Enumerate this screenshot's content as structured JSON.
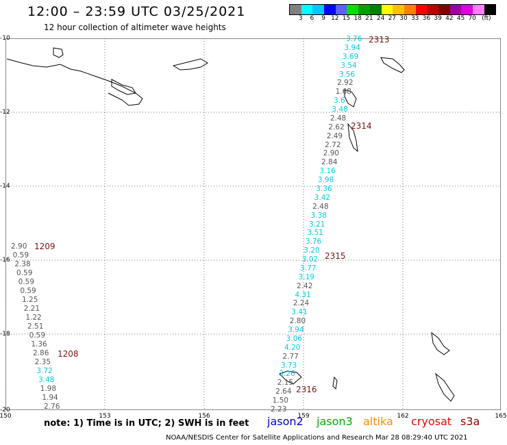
{
  "header": {
    "title": "12:00 – 23:59 UTC 03/25/2021",
    "subtitle": "12 hour collection of altimeter wave heights"
  },
  "scale": {
    "colors": [
      "#808080",
      "#00ffff",
      "#00c8ff",
      "#0000ff",
      "#6060ff",
      "#00e000",
      "#00a000",
      "#008000",
      "#ffff00",
      "#ffc000",
      "#ff8000",
      "#ff0000",
      "#c00000",
      "#800000",
      "#a000a0",
      "#e000e0",
      "#ff80ff",
      "#000000"
    ],
    "labels": [
      "3",
      "6",
      "9",
      "12",
      "15",
      "18",
      "21",
      "24",
      "27",
      "30",
      "33",
      "36",
      "39",
      "42",
      "45",
      "70",
      "(ft)"
    ]
  },
  "axes": {
    "lat_labels": [
      "-10",
      "-12",
      "-14",
      "-16",
      "-18",
      "-20"
    ],
    "lon_labels": [
      "150",
      "153",
      "156",
      "159",
      "162",
      "165"
    ]
  },
  "colors": {
    "jason2": "#0000cc",
    "jason3": "#00aa00",
    "altika": "#ff8800",
    "cryosat": "#ee0000",
    "s3a": "#880000",
    "cyan": "#00ccdd",
    "gray": "#555555",
    "pass": "#7a1010"
  },
  "passes": [
    {
      "label": "2313",
      "color": "pass"
    },
    {
      "label": "2314",
      "color": "pass"
    },
    {
      "label": "2315",
      "color": "pass"
    },
    {
      "label": "2316",
      "color": "pass"
    },
    {
      "label": "1209",
      "color": "pass"
    },
    {
      "label": "1208",
      "color": "pass"
    }
  ],
  "track_east": [
    {
      "v": "3.76",
      "c": "cyan"
    },
    {
      "v": "3.94",
      "c": "cyan"
    },
    {
      "v": "3.69",
      "c": "cyan"
    },
    {
      "v": "3.54",
      "c": "cyan"
    },
    {
      "v": "3.56",
      "c": "cyan"
    },
    {
      "v": "2.92",
      "c": "gray"
    },
    {
      "v": "1.68",
      "c": "gray"
    },
    {
      "v": "3.6",
      "c": "cyan"
    },
    {
      "v": "3.48",
      "c": "cyan"
    },
    {
      "v": "2.48",
      "c": "gray"
    },
    {
      "v": "2.62",
      "c": "gray"
    },
    {
      "v": "2.49",
      "c": "gray"
    },
    {
      "v": "2.72",
      "c": "gray"
    },
    {
      "v": "2.90",
      "c": "gray"
    },
    {
      "v": "2.84",
      "c": "gray"
    },
    {
      "v": "3.16",
      "c": "cyan"
    },
    {
      "v": "3.98",
      "c": "cyan"
    },
    {
      "v": "3.36",
      "c": "cyan"
    },
    {
      "v": "3.42",
      "c": "cyan"
    },
    {
      "v": "2.48",
      "c": "gray"
    },
    {
      "v": "3.38",
      "c": "cyan"
    },
    {
      "v": "3.21",
      "c": "cyan"
    },
    {
      "v": "3.51",
      "c": "cyan"
    },
    {
      "v": "3.76",
      "c": "cyan"
    },
    {
      "v": "3.20",
      "c": "cyan"
    },
    {
      "v": "3.02",
      "c": "cyan"
    },
    {
      "v": "3.77",
      "c": "cyan"
    },
    {
      "v": "3.19",
      "c": "cyan"
    },
    {
      "v": "2.42",
      "c": "gray"
    },
    {
      "v": "4.31",
      "c": "cyan"
    },
    {
      "v": "2.24",
      "c": "gray"
    },
    {
      "v": "3.41",
      "c": "cyan"
    },
    {
      "v": "2.80",
      "c": "gray"
    },
    {
      "v": "3.94",
      "c": "cyan"
    },
    {
      "v": "3.06",
      "c": "cyan"
    },
    {
      "v": "4.20",
      "c": "cyan"
    },
    {
      "v": "2.77",
      "c": "gray"
    },
    {
      "v": "3.73",
      "c": "cyan"
    },
    {
      "v": "3.26",
      "c": "cyan"
    },
    {
      "v": "2.15",
      "c": "gray"
    },
    {
      "v": "2.64",
      "c": "gray"
    },
    {
      "v": "1.50",
      "c": "gray"
    },
    {
      "v": "2.23",
      "c": "gray"
    }
  ],
  "track_west": [
    {
      "v": "2.90",
      "c": "gray"
    },
    {
      "v": "0.59",
      "c": "gray"
    },
    {
      "v": "2.38",
      "c": "gray"
    },
    {
      "v": "0.59",
      "c": "gray"
    },
    {
      "v": "0.59",
      "c": "gray"
    },
    {
      "v": "0.59",
      "c": "gray"
    },
    {
      "v": "1.25",
      "c": "gray"
    },
    {
      "v": "2.21",
      "c": "gray"
    },
    {
      "v": "1.22",
      "c": "gray"
    },
    {
      "v": "2.51",
      "c": "gray"
    },
    {
      "v": "0.59",
      "c": "gray"
    },
    {
      "v": "1.36",
      "c": "gray"
    },
    {
      "v": "2.86",
      "c": "gray"
    },
    {
      "v": "2.35",
      "c": "gray"
    },
    {
      "v": "3.72",
      "c": "cyan"
    },
    {
      "v": "3.48",
      "c": "cyan"
    },
    {
      "v": "1.98",
      "c": "gray"
    },
    {
      "v": "1.94",
      "c": "gray"
    },
    {
      "v": "2.76",
      "c": "gray"
    }
  ],
  "footer": {
    "note": "note: 1) Time is in UTC; 2) SWH is in feet",
    "satellites": [
      {
        "name": "jason2",
        "color": "jason2"
      },
      {
        "name": "jason3",
        "color": "jason3"
      },
      {
        "name": "altika",
        "color": "altika"
      },
      {
        "name": "cryosat",
        "color": "cryosat"
      },
      {
        "name": "s3a",
        "color": "s3a"
      }
    ],
    "credit": "NOAA/NESDIS Center for Satellite Applications and Research    Mar 28 08:29:40 UTC 2021"
  }
}
